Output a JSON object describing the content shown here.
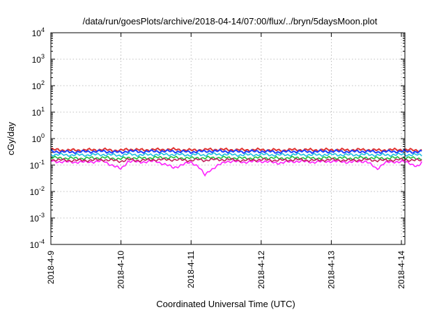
{
  "chart_data": {
    "type": "line",
    "title": "/data/run/goesPlots/archive/2018-04-14/07:00/flux/../bryn/5daysMoon.plot",
    "xlabel": "Coordinated Universal Time (UTC)",
    "ylabel": "cGy/day",
    "yscale": "log",
    "ylim": [
      0.0001,
      10000
    ],
    "xlim": [
      "2018-04-09",
      "2018-04-14 07:00"
    ],
    "x_ticks": [
      "2018-4-9",
      "2018-4-10",
      "2018-4-11",
      "2018-4-12",
      "2018-4-13",
      "2018-4-14"
    ],
    "y_ticks": [
      {
        "base": "10",
        "exp": "4"
      },
      {
        "base": "10",
        "exp": "3"
      },
      {
        "base": "10",
        "exp": "2"
      },
      {
        "base": "10",
        "exp": "1"
      },
      {
        "base": "10",
        "exp": "0"
      },
      {
        "base": "10",
        "exp": "-1"
      },
      {
        "base": "10",
        "exp": "-2"
      },
      {
        "base": "10",
        "exp": "-3"
      },
      {
        "base": "10",
        "exp": "-4"
      }
    ],
    "grid": true,
    "x_days": [
      0,
      0.25,
      0.5,
      0.75,
      1.0,
      1.1,
      1.25,
      1.5,
      1.75,
      2.0,
      2.1,
      2.2,
      2.25,
      2.5,
      2.75,
      3.0,
      3.25,
      3.5,
      3.75,
      4.0,
      4.25,
      4.5,
      4.65,
      4.75,
      5.0,
      5.25,
      5.29
    ],
    "series": [
      {
        "color": "#e0302f",
        "values": [
          0.38,
          0.36,
          0.37,
          0.38,
          0.35,
          0.4,
          0.37,
          0.38,
          0.39,
          0.36,
          0.38,
          0.37,
          0.39,
          0.38,
          0.37,
          0.38,
          0.36,
          0.38,
          0.37,
          0.38,
          0.37,
          0.38,
          0.36,
          0.37,
          0.38,
          0.36,
          0.37
        ]
      },
      {
        "color": "#2040ff",
        "values": [
          0.33,
          0.31,
          0.32,
          0.33,
          0.3,
          0.34,
          0.32,
          0.33,
          0.33,
          0.31,
          0.33,
          0.32,
          0.34,
          0.33,
          0.32,
          0.33,
          0.31,
          0.33,
          0.32,
          0.33,
          0.32,
          0.33,
          0.31,
          0.32,
          0.33,
          0.31,
          0.32
        ]
      },
      {
        "color": "#20c0e0",
        "values": [
          0.25,
          0.24,
          0.24,
          0.25,
          0.23,
          0.26,
          0.24,
          0.25,
          0.25,
          0.24,
          0.25,
          0.24,
          0.26,
          0.25,
          0.24,
          0.25,
          0.24,
          0.25,
          0.24,
          0.25,
          0.24,
          0.25,
          0.24,
          0.24,
          0.25,
          0.24,
          0.24
        ]
      },
      {
        "color": "#20c040",
        "values": [
          0.19,
          0.18,
          0.18,
          0.19,
          0.17,
          0.19,
          0.18,
          0.19,
          0.19,
          0.18,
          0.19,
          0.18,
          0.19,
          0.19,
          0.18,
          0.19,
          0.18,
          0.19,
          0.18,
          0.19,
          0.18,
          0.19,
          0.18,
          0.18,
          0.19,
          0.18,
          0.18
        ]
      },
      {
        "color": "#ff20ff",
        "values": [
          0.14,
          0.13,
          0.13,
          0.14,
          0.07,
          0.14,
          0.13,
          0.14,
          0.08,
          0.13,
          0.09,
          0.04,
          0.06,
          0.14,
          0.13,
          0.14,
          0.12,
          0.14,
          0.13,
          0.14,
          0.13,
          0.14,
          0.07,
          0.12,
          0.14,
          0.09,
          0.13
        ]
      },
      {
        "color": "#c0205a",
        "values": [
          0.16,
          0.15,
          0.15,
          0.16,
          0.14,
          0.16,
          0.15,
          0.16,
          0.16,
          0.15,
          0.16,
          0.15,
          0.16,
          0.16,
          0.15,
          0.16,
          0.15,
          0.16,
          0.15,
          0.16,
          0.15,
          0.16,
          0.15,
          0.15,
          0.16,
          0.15,
          0.15
        ]
      }
    ]
  }
}
